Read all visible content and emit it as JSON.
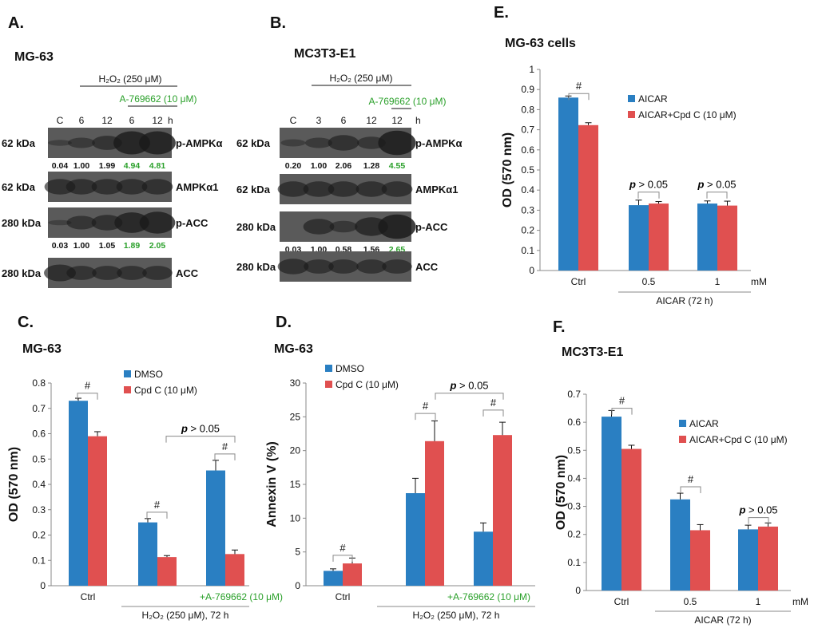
{
  "colors": {
    "blue": "#2a7fc2",
    "red": "#e05050",
    "green": "#2aa02a",
    "blot": "#1a1a1a",
    "axis": "#888888"
  },
  "panel_a": {
    "letter": "A.",
    "cell": "MG-63",
    "treatment": "H₂O₂ (250 μM)",
    "inhibitor": "A-769662 (10 μM)",
    "lanes": [
      "C",
      "6",
      "12",
      "6",
      "12"
    ],
    "unit": "h",
    "rows": [
      {
        "kda": "62 kDa",
        "label": "p-AMPKα",
        "values": [
          "0.04",
          "1.00",
          "1.99",
          "4.94",
          "4.81"
        ]
      },
      {
        "kda": "62 kDa",
        "label": "AMPKα1",
        "values": []
      },
      {
        "kda": "280 kDa",
        "label": "p-ACC",
        "values": [
          "0.03",
          "1.00",
          "1.05",
          "1.89",
          "2.05"
        ]
      },
      {
        "kda": "280 kDa",
        "label": "ACC",
        "values": []
      }
    ]
  },
  "panel_b": {
    "letter": "B.",
    "cell": "MC3T3-E1",
    "treatment": "H₂O₂ (250 μM)",
    "inhibitor": "A-769662 (10 μM)",
    "lanes": [
      "C",
      "3",
      "6",
      "12",
      "12"
    ],
    "unit": "h",
    "rows": [
      {
        "kda": "62 kDa",
        "label": "p-AMPKα",
        "values": [
          "0.20",
          "1.00",
          "2.06",
          "1.28",
          "4.55"
        ]
      },
      {
        "kda": "62 kDa",
        "label": "AMPKα1",
        "values": []
      },
      {
        "kda": "280 kDa",
        "label": "p-ACC",
        "values": [
          "0.03",
          "1.00",
          "0.58",
          "1.56",
          "2.65"
        ]
      },
      {
        "kda": "280 kDa",
        "label": "ACC",
        "values": []
      }
    ]
  },
  "chart_data": [
    {
      "id": "C",
      "letter": "C.",
      "type": "bar",
      "title": "MG-63",
      "ylabel": "OD (570 nm)",
      "ylim": [
        0,
        0.8
      ],
      "yticks": [
        "0",
        "0.1",
        "0.2",
        "0.3",
        "0.4",
        "0.5",
        "0.6",
        "0.7",
        "0.8"
      ],
      "categories": [
        "Ctrl",
        "",
        "+A-769662 (10 μM)"
      ],
      "series": [
        {
          "name": "DMSO",
          "values": [
            0.73,
            0.25,
            0.455
          ],
          "errors": [
            0.01,
            0.015,
            0.04
          ]
        },
        {
          "name": "Cpd C (10 μM)",
          "values": [
            0.59,
            0.113,
            0.125
          ],
          "errors": [
            0.018,
            0.006,
            0.016
          ]
        }
      ],
      "group_label": "H₂O₂ (250 μM), 72 h",
      "unit": "",
      "annotations": [
        "#",
        "#",
        "#",
        "p > 0.05"
      ]
    },
    {
      "id": "D",
      "letter": "D.",
      "type": "bar",
      "title": "MG-63",
      "ylabel": "Annexin V (%)",
      "ylim": [
        0,
        30
      ],
      "yticks": [
        "0",
        "5",
        "10",
        "15",
        "20",
        "25",
        "30"
      ],
      "categories": [
        "Ctrl",
        "",
        "+A-769662 (10 μM)"
      ],
      "series": [
        {
          "name": "DMSO",
          "values": [
            2.2,
            13.7,
            8.0
          ],
          "errors": [
            0.3,
            2.2,
            1.3
          ]
        },
        {
          "name": "Cpd C (10 μM)",
          "values": [
            3.3,
            21.4,
            22.3
          ],
          "errors": [
            0.8,
            3.0,
            1.9
          ]
        }
      ],
      "group_label": "H₂O₂ (250 μM), 72 h",
      "unit": "",
      "annotations": [
        "#",
        "#",
        "#",
        "p > 0.05"
      ]
    },
    {
      "id": "E",
      "letter": "E.",
      "type": "bar",
      "title": "MG-63 cells",
      "ylabel": "OD (570 nm)",
      "ylim": [
        0,
        1
      ],
      "yticks": [
        "0",
        "0.1",
        "0.2",
        "0.3",
        "0.4",
        "0.5",
        "0.6",
        "0.7",
        "0.8",
        "0.9",
        "1"
      ],
      "categories": [
        "Ctrl",
        "0.5",
        "1"
      ],
      "series": [
        {
          "name": "AICAR",
          "values": [
            0.86,
            0.325,
            0.333
          ],
          "errors": [
            0.008,
            0.025,
            0.013
          ]
        },
        {
          "name": "AICAR+Cpd C (10 μM)",
          "values": [
            0.723,
            0.333,
            0.323
          ],
          "errors": [
            0.012,
            0.01,
            0.022
          ]
        }
      ],
      "group_label": "AICAR (72 h)",
      "unit": "mM",
      "annotations": [
        "#",
        "p > 0.05",
        "p > 0.05"
      ]
    },
    {
      "id": "F",
      "letter": "F.",
      "type": "bar",
      "title": "MC3T3-E1",
      "ylabel": "OD (570 nm)",
      "ylim": [
        0,
        0.7
      ],
      "yticks": [
        "0",
        "0.1",
        "0.2",
        "0.3",
        "0.4",
        "0.5",
        "0.6",
        "0.7"
      ],
      "categories": [
        "Ctrl",
        "0.5",
        "1"
      ],
      "series": [
        {
          "name": "AICAR",
          "values": [
            0.62,
            0.325,
            0.218
          ],
          "errors": [
            0.022,
            0.022,
            0.015
          ]
        },
        {
          "name": "AICAR+Cpd C (10 μM)",
          "values": [
            0.505,
            0.215,
            0.228
          ],
          "errors": [
            0.013,
            0.02,
            0.013
          ]
        }
      ],
      "group_label": "AICAR (72 h)",
      "unit": "mM",
      "annotations": [
        "#",
        "#",
        "p > 0.05"
      ]
    }
  ]
}
